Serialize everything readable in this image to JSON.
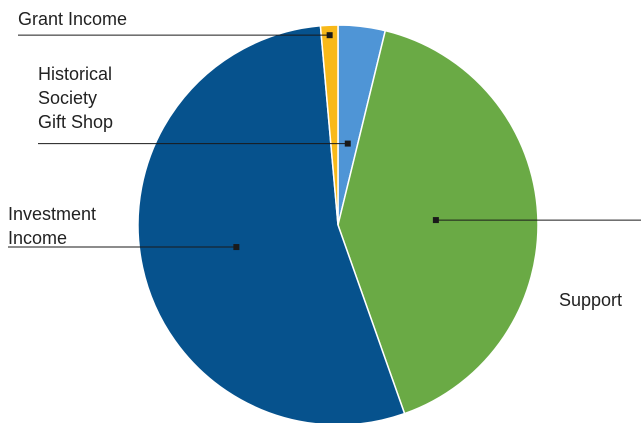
{
  "chart_data": {
    "type": "pie",
    "title": "",
    "slices": [
      {
        "label": "Historical Society Gift Shop",
        "label_lines": [
          "Historical",
          "Society",
          "Gift Shop"
        ],
        "value": 3.8,
        "color": "#4f95d6"
      },
      {
        "label": "Support",
        "label_lines": [
          "Support"
        ],
        "value": 40.8,
        "color": "#6aaa45"
      },
      {
        "label": "Investment Income",
        "label_lines": [
          "Investment",
          "Income"
        ],
        "value": 54.0,
        "color": "#06528d"
      },
      {
        "label": "Grant Income",
        "label_lines": [
          "Grant Income"
        ],
        "value": 1.4,
        "color": "#f8b91a"
      }
    ],
    "legend": "none",
    "labels": "leader-lines"
  }
}
